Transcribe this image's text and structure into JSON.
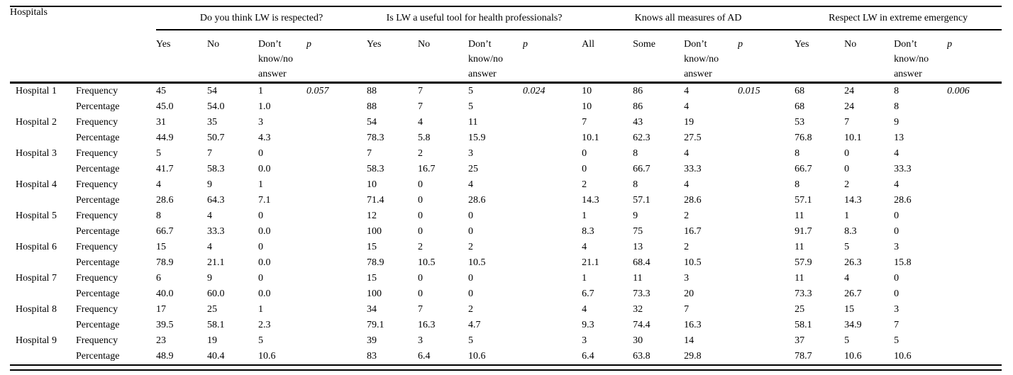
{
  "table": {
    "row_header": "Hospitals",
    "measure_labels": [
      "Frequency",
      "Percentage"
    ],
    "groups": [
      {
        "title": "Do you think LW is respected?",
        "columns": [
          "Yes",
          "No",
          "Don’t know/no answer",
          "p"
        ]
      },
      {
        "title": "Is LW a useful tool for health professionals?",
        "columns": [
          "Yes",
          "No",
          "Don’t know/no answer",
          "p"
        ]
      },
      {
        "title": "Knows all measures of AD",
        "columns": [
          "All",
          "Some",
          "Don’t know/no answer",
          "p"
        ]
      },
      {
        "title": "Respect LW in extreme emergency",
        "columns": [
          "Yes",
          "No",
          "Don’t know/no answer",
          "p"
        ]
      }
    ],
    "p_values": [
      "0.057",
      "0.024",
      "0.015",
      "0.006"
    ],
    "rows": [
      {
        "hospital": "Hospital 1",
        "frequency": [
          "45",
          "54",
          "1",
          "0.057",
          "88",
          "7",
          "5",
          "0.024",
          "10",
          "86",
          "4",
          "0.015",
          "68",
          "24",
          "8",
          "0.006"
        ],
        "percentage": [
          "45.0",
          "54.0",
          "1.0",
          "",
          "88",
          "7",
          "5",
          "",
          "10",
          "86",
          "4",
          "",
          "68",
          "24",
          "8",
          ""
        ]
      },
      {
        "hospital": "Hospital 2",
        "frequency": [
          "31",
          "35",
          "3",
          "",
          "54",
          "4",
          "11",
          "",
          "7",
          "43",
          "19",
          "",
          "53",
          "7",
          "9",
          ""
        ],
        "percentage": [
          "44.9",
          "50.7",
          "4.3",
          "",
          "78.3",
          "5.8",
          "15.9",
          "",
          "10.1",
          "62.3",
          "27.5",
          "",
          "76.8",
          "10.1",
          "13",
          ""
        ]
      },
      {
        "hospital": "Hospital 3",
        "frequency": [
          "5",
          "7",
          "0",
          "",
          "7",
          "2",
          "3",
          "",
          "0",
          "8",
          "4",
          "",
          "8",
          "0",
          "4",
          ""
        ],
        "percentage": [
          "41.7",
          "58.3",
          "0.0",
          "",
          "58.3",
          "16.7",
          "25",
          "",
          "0",
          "66.7",
          "33.3",
          "",
          "66.7",
          "0",
          "33.3",
          ""
        ]
      },
      {
        "hospital": "Hospital 4",
        "frequency": [
          "4",
          "9",
          "1",
          "",
          "10",
          "0",
          "4",
          "",
          "2",
          "8",
          "4",
          "",
          "8",
          "2",
          "4",
          ""
        ],
        "percentage": [
          "28.6",
          "64.3",
          "7.1",
          "",
          "71.4",
          "0",
          "28.6",
          "",
          "14.3",
          "57.1",
          "28.6",
          "",
          "57.1",
          "14.3",
          "28.6",
          ""
        ]
      },
      {
        "hospital": "Hospital 5",
        "frequency": [
          "8",
          "4",
          "0",
          "",
          "12",
          "0",
          "0",
          "",
          "1",
          "9",
          "2",
          "",
          "11",
          "1",
          "0",
          ""
        ],
        "percentage": [
          "66.7",
          "33.3",
          "0.0",
          "",
          "100",
          "0",
          "0",
          "",
          "8.3",
          "75",
          "16.7",
          "",
          "91.7",
          "8.3",
          "0",
          ""
        ]
      },
      {
        "hospital": "Hospital 6",
        "frequency": [
          "15",
          "4",
          "0",
          "",
          "15",
          "2",
          "2",
          "",
          "4",
          "13",
          "2",
          "",
          "11",
          "5",
          "3",
          ""
        ],
        "percentage": [
          "78.9",
          "21.1",
          "0.0",
          "",
          "78.9",
          "10.5",
          "10.5",
          "",
          "21.1",
          "68.4",
          "10.5",
          "",
          "57.9",
          "26.3",
          "15.8",
          ""
        ]
      },
      {
        "hospital": "Hospital 7",
        "frequency": [
          "6",
          "9",
          "0",
          "",
          "15",
          "0",
          "0",
          "",
          "1",
          "11",
          "3",
          "",
          "11",
          "4",
          "0",
          ""
        ],
        "percentage": [
          "40.0",
          "60.0",
          "0.0",
          "",
          "100",
          "0",
          "0",
          "",
          "6.7",
          "73.3",
          "20",
          "",
          "73.3",
          "26.7",
          "0",
          ""
        ]
      },
      {
        "hospital": "Hospital 8",
        "frequency": [
          "17",
          "25",
          "1",
          "",
          "34",
          "7",
          "2",
          "",
          "4",
          "32",
          "7",
          "",
          "25",
          "15",
          "3",
          ""
        ],
        "percentage": [
          "39.5",
          "58.1",
          "2.3",
          "",
          "79.1",
          "16.3",
          "4.7",
          "",
          "9.3",
          "74.4",
          "16.3",
          "",
          "58.1",
          "34.9",
          "7",
          ""
        ]
      },
      {
        "hospital": "Hospital 9",
        "frequency": [
          "23",
          "19",
          "5",
          "",
          "39",
          "3",
          "5",
          "",
          "3",
          "30",
          "14",
          "",
          "37",
          "5",
          "5",
          ""
        ],
        "percentage": [
          "48.9",
          "40.4",
          "10.6",
          "",
          "83",
          "6.4",
          "10.6",
          "",
          "6.4",
          "63.8",
          "29.8",
          "",
          "78.7",
          "10.6",
          "10.6",
          ""
        ]
      }
    ]
  }
}
